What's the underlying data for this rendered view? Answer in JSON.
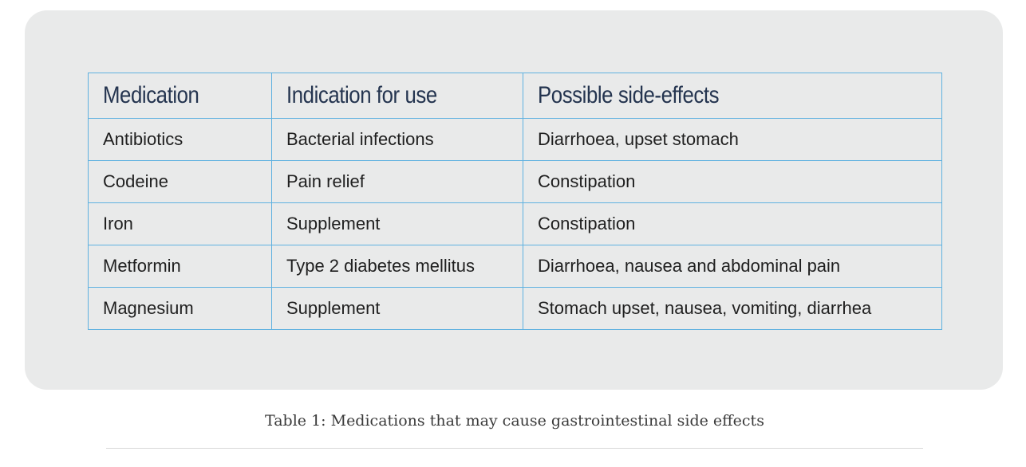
{
  "table": {
    "headers": [
      "Medication",
      "Indication for use",
      "Possible side-effects"
    ],
    "rows": [
      [
        "Antibiotics",
        "Bacterial infections",
        "Diarrhoea, upset stomach"
      ],
      [
        "Codeine",
        "Pain relief",
        "Constipation"
      ],
      [
        "Iron",
        "Supplement",
        "Constipation"
      ],
      [
        "Metformin",
        "Type 2 diabetes mellitus",
        "Diarrhoea, nausea and abdominal pain"
      ],
      [
        "Magnesium",
        "Supplement",
        "Stomach upset, nausea, vomiting, diarrhea"
      ]
    ]
  },
  "caption": "Table 1: Medications that may cause gastrointestinal side effects"
}
